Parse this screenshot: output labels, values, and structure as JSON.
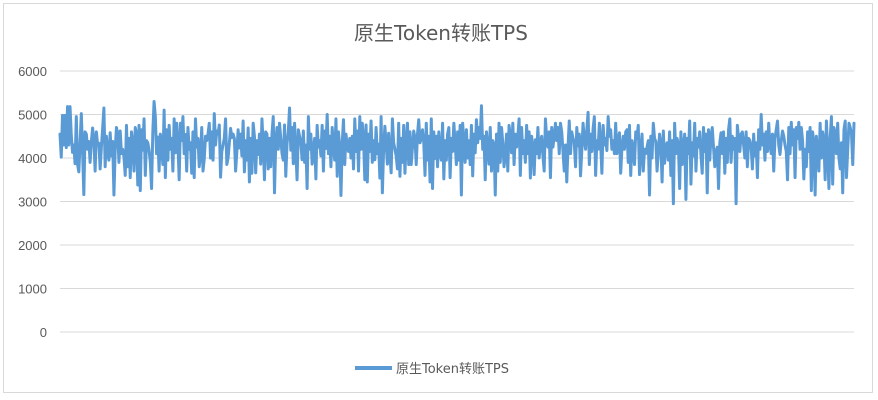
{
  "chart_data": {
    "type": "line",
    "title": "原生Token转账TPS",
    "xlabel": "",
    "ylabel": "",
    "ylim": [
      0,
      6000
    ],
    "yticks": [
      0,
      1000,
      2000,
      3000,
      4000,
      5000,
      6000
    ],
    "ytick_labels": [
      "0",
      "1000",
      "2000",
      "3000",
      "4000",
      "5000",
      "6000"
    ],
    "grid": true,
    "legend_position": "bottom",
    "series": [
      {
        "name": "原生Token转账TPS",
        "color": "#5b9bd5",
        "values": [
          4550,
          4020,
          4980,
          4300,
          4980,
          4240,
          5180,
          4300,
          5180,
          4520,
          4130,
          4300,
          3870,
          4950,
          3850,
          3680,
          4350,
          5020,
          4150,
          3160,
          4600,
          4550,
          4200,
          4380,
          3900,
          4380,
          4690,
          4410,
          3700,
          4600,
          4300,
          4340,
          3750,
          4250,
          4680,
          5150,
          3800,
          4500,
          4100,
          3950,
          4580,
          4050,
          4380,
          3150,
          4200,
          4700,
          4550,
          3900,
          4620,
          4100,
          4200,
          4020,
          3600,
          4750,
          3800,
          4450,
          3550,
          4600,
          4350,
          3700,
          4700,
          4550,
          3380,
          4750,
          3250,
          4650,
          4180,
          4900,
          3600,
          4400,
          4350,
          4180,
          3900,
          3300,
          4600,
          5300,
          4950,
          4100,
          4480,
          3700,
          4550,
          4250,
          3850,
          5100,
          3550,
          4650,
          3950,
          4750,
          4200,
          4450,
          3700,
          4900,
          4120,
          4800,
          4340,
          3500,
          4800,
          4400,
          4950,
          4100,
          4540,
          3700,
          4700,
          4200,
          4350,
          3650,
          4600,
          3550,
          4900,
          4250,
          4450,
          3800,
          4100,
          4700,
          3700,
          3980,
          4500,
          4400,
          4550,
          4800,
          4000,
          4600,
          3950,
          5020,
          4300,
          4620,
          4550,
          4760,
          3560,
          4150,
          4300,
          4460,
          4900,
          3850,
          4000,
          4350,
          4680,
          4470,
          4550,
          4450,
          3700,
          4150,
          4650,
          4230,
          4550,
          4050,
          4850,
          3680,
          4400,
          3950,
          4690,
          3450,
          4450,
          3650,
          4800,
          4500,
          3660,
          4400,
          4080,
          4550,
          3860,
          4900,
          4300,
          3500,
          4600,
          4550,
          3750,
          4450,
          3800,
          4550,
          4950,
          3200,
          4350,
          4700,
          4200,
          4800,
          4450,
          4100,
          3950,
          4760,
          3580,
          4330,
          4600,
          5150,
          4180,
          4700,
          3870,
          4800,
          4150,
          3500,
          4650,
          4500,
          4350,
          3960,
          4620,
          3900,
          4300,
          3300,
          4950,
          4200,
          4550,
          3860,
          4150,
          4450,
          3520,
          4750,
          4250,
          4400,
          4050,
          4750,
          3700,
          4620,
          4220,
          5000,
          4100,
          4500,
          3800,
          4700,
          4300,
          3950,
          4900,
          3580,
          4600,
          4250,
          3140,
          4350,
          4880,
          3850,
          4550,
          4250,
          4150,
          4450,
          4000,
          4500,
          3750,
          4900,
          4150,
          4620,
          3700,
          4950,
          4200,
          4800,
          4430,
          3500,
          4760,
          3450,
          4550,
          4150,
          4850,
          3900,
          4400,
          3960,
          4700,
          4100,
          4320,
          3540,
          4950,
          3200,
          4200,
          4730,
          4330,
          3860,
          4570,
          4080,
          3660,
          4900,
          4350,
          4200,
          4050,
          3750,
          4800,
          3580,
          4450,
          3900,
          4750,
          3650,
          4350,
          4800,
          3850,
          4600,
          3850,
          4250,
          4620,
          4450,
          3850,
          4550,
          4880,
          4350,
          4450,
          4650,
          4350,
          3600,
          4800,
          3950,
          4500,
          3450,
          4900,
          3300,
          4600,
          3990,
          4500,
          3800,
          4600,
          4100,
          3950,
          4800,
          3520,
          4400,
          3950,
          4550,
          4700,
          3550,
          4450,
          4150,
          4800,
          4350,
          3850,
          4600,
          3950,
          4750,
          3150,
          4800,
          4380,
          3900,
          4650,
          4000,
          4400,
          3850,
          4750,
          3590,
          4550,
          4120,
          4880,
          4350,
          4700,
          4450,
          5200,
          4200,
          4500,
          3500,
          4600,
          4250,
          3860,
          4700,
          3700,
          4400,
          4300,
          3150,
          4550,
          3700,
          4800,
          3900,
          4700,
          4350,
          3800,
          4100,
          4550,
          3700,
          4750,
          4470,
          4120,
          4800,
          3850,
          4550,
          4250,
          4500,
          4900,
          3600,
          4700,
          4100,
          4400,
          3900,
          4750,
          4100,
          4600,
          3540,
          4500,
          4250,
          3620,
          4420,
          4100,
          4700,
          4000,
          4350,
          4500,
          4050,
          3700,
          4900,
          4450,
          4250,
          4600,
          3550,
          4700,
          4250,
          4500,
          4800,
          4400,
          4700,
          4100,
          4800,
          4600,
          4150,
          3700,
          4300,
          3450,
          4250,
          4850,
          4100,
          4600,
          4450,
          4350,
          3800,
          4700,
          4280,
          4550,
          3590,
          4180,
          4800,
          4430,
          4200,
          4650,
          5050,
          3850,
          4550,
          4150,
          4680,
          4950,
          3600,
          4400,
          4200,
          4800,
          4350,
          3650,
          4750,
          4300,
          4450,
          4170,
          4950,
          4500,
          4650,
          4200,
          4400,
          4100,
          4800,
          4100,
          4350,
          4580,
          3650,
          4250,
          4500,
          4200,
          4600,
          4650,
          3900,
          4750,
          3600,
          4400,
          4200,
          3850,
          4600,
          4450,
          4750,
          3620,
          4150,
          4550,
          3700,
          4200,
          4100,
          4250,
          4400,
          3150,
          4500,
          4000,
          4800,
          4450,
          4380,
          3700,
          4150,
          4550,
          4300,
          3450,
          4620,
          3880,
          4250,
          4350,
          3950,
          4600,
          3600,
          4400,
          2950,
          4800,
          4100,
          4450,
          4300,
          3300,
          4600,
          3850,
          4250,
          4550,
          3050,
          4450,
          4100,
          4850,
          3400,
          4350,
          4050,
          4800,
          3700,
          4450,
          4250,
          4600,
          4050,
          3650,
          4700,
          4150,
          4550,
          3200,
          4650,
          3950,
          4500,
          4700,
          4250,
          3800,
          4150,
          4250,
          3300,
          4350,
          4580,
          4100,
          4600,
          3650,
          4450,
          3900,
          4650,
          4900,
          3900,
          4500,
          4200,
          4450,
          2950,
          4750,
          4450,
          4150,
          4550,
          4600,
          4300,
          4000,
          4600,
          3800,
          4450,
          4400,
          4250,
          3750,
          4550,
          4050,
          4350,
          3550,
          4650,
          4200,
          5000,
          4300,
          4550,
          3950,
          4600,
          4150,
          4800,
          4300,
          4100,
          4550,
          3700,
          4450,
          4650,
          4850,
          4300,
          4080,
          4400,
          4620,
          4500,
          4300,
          4150,
          3500,
          4700,
          4100,
          4820,
          4300,
          4650,
          3550,
          4700,
          4450,
          4820,
          4200,
          4700,
          4400,
          3520,
          4200,
          3800,
          4600,
          4150,
          4700,
          3250,
          4600,
          4350,
          3150,
          4500,
          4100,
          3700,
          4800,
          4000,
          4600,
          4400,
          3500,
          4850,
          4200,
          3300,
          4450,
          4950,
          3400,
          4700,
          4550,
          4100,
          4800,
          4000,
          3750,
          4350,
          3200,
          4650,
          4850,
          3550,
          4200,
          4800,
          4700,
          4550,
          3850,
          4800
        ]
      }
    ]
  }
}
